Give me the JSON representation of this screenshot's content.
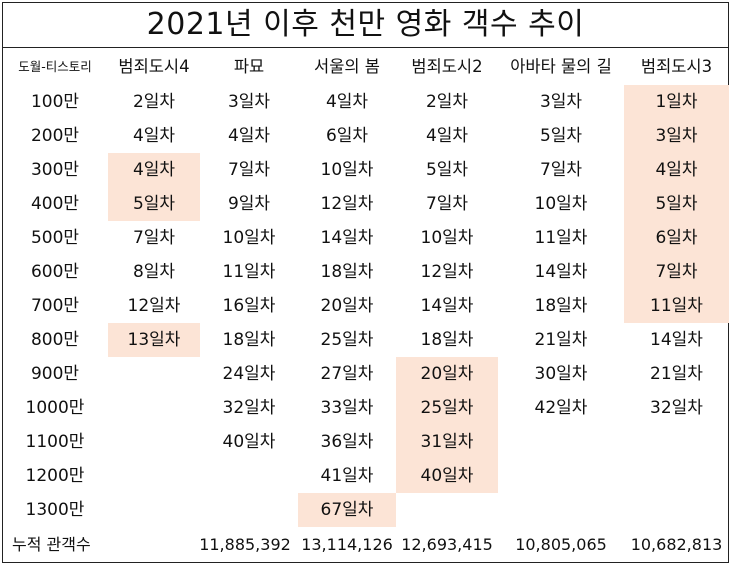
{
  "title": "2021년 이후 천만 영화 객수 추이",
  "header": {
    "corner": "도월-티스토리",
    "columns": [
      "범죄도시4",
      "파묘",
      "서울의 봄",
      "범죄도시2",
      "아바타 물의 길",
      "범죄도시3"
    ]
  },
  "highlight_color": "#fce4d6",
  "rows": [
    {
      "label": "100만",
      "cells": [
        {
          "v": "2일차"
        },
        {
          "v": "3일차"
        },
        {
          "v": "4일차"
        },
        {
          "v": "2일차"
        },
        {
          "v": "3일차"
        },
        {
          "v": "1일차",
          "hl": true
        }
      ]
    },
    {
      "label": "200만",
      "cells": [
        {
          "v": "4일차"
        },
        {
          "v": "4일차"
        },
        {
          "v": "6일차"
        },
        {
          "v": "4일차"
        },
        {
          "v": "5일차"
        },
        {
          "v": "3일차",
          "hl": true
        }
      ]
    },
    {
      "label": "300만",
      "cells": [
        {
          "v": "4일차",
          "hl": true
        },
        {
          "v": "7일차"
        },
        {
          "v": "10일차"
        },
        {
          "v": "5일차"
        },
        {
          "v": "7일차"
        },
        {
          "v": "4일차",
          "hl": true
        }
      ]
    },
    {
      "label": "400만",
      "cells": [
        {
          "v": "5일차",
          "hl": true
        },
        {
          "v": "9일차"
        },
        {
          "v": "12일차"
        },
        {
          "v": "7일차"
        },
        {
          "v": "10일차"
        },
        {
          "v": "5일차",
          "hl": true
        }
      ]
    },
    {
      "label": "500만",
      "cells": [
        {
          "v": "7일차"
        },
        {
          "v": "10일차"
        },
        {
          "v": "14일차"
        },
        {
          "v": "10일차"
        },
        {
          "v": "11일차"
        },
        {
          "v": "6일차",
          "hl": true
        }
      ]
    },
    {
      "label": "600만",
      "cells": [
        {
          "v": "8일차"
        },
        {
          "v": "11일차"
        },
        {
          "v": "18일차"
        },
        {
          "v": "12일차"
        },
        {
          "v": "14일차"
        },
        {
          "v": "7일차",
          "hl": true
        }
      ]
    },
    {
      "label": "700만",
      "cells": [
        {
          "v": "12일차"
        },
        {
          "v": "16일차"
        },
        {
          "v": "20일차"
        },
        {
          "v": "14일차"
        },
        {
          "v": "18일차"
        },
        {
          "v": "11일차",
          "hl": true
        }
      ]
    },
    {
      "label": "800만",
      "cells": [
        {
          "v": "13일차",
          "hl": true
        },
        {
          "v": "18일차"
        },
        {
          "v": "25일차"
        },
        {
          "v": "18일차"
        },
        {
          "v": "21일차"
        },
        {
          "v": "14일차"
        }
      ]
    },
    {
      "label": "900만",
      "cells": [
        {
          "v": ""
        },
        {
          "v": "24일차"
        },
        {
          "v": "27일차"
        },
        {
          "v": "20일차",
          "hl": true
        },
        {
          "v": "30일차"
        },
        {
          "v": "21일차"
        }
      ]
    },
    {
      "label": "1000만",
      "cells": [
        {
          "v": ""
        },
        {
          "v": "32일차"
        },
        {
          "v": "33일차"
        },
        {
          "v": "25일차",
          "hl": true
        },
        {
          "v": "42일차"
        },
        {
          "v": "32일차"
        }
      ]
    },
    {
      "label": "1100만",
      "cells": [
        {
          "v": ""
        },
        {
          "v": "40일차"
        },
        {
          "v": "36일차"
        },
        {
          "v": "31일차",
          "hl": true
        },
        {
          "v": ""
        },
        {
          "v": ""
        }
      ]
    },
    {
      "label": "1200만",
      "cells": [
        {
          "v": ""
        },
        {
          "v": ""
        },
        {
          "v": "41일차"
        },
        {
          "v": "40일차",
          "hl": true
        },
        {
          "v": ""
        },
        {
          "v": ""
        }
      ]
    },
    {
      "label": "1300만",
      "cells": [
        {
          "v": ""
        },
        {
          "v": ""
        },
        {
          "v": "67일차",
          "hl": true
        },
        {
          "v": ""
        },
        {
          "v": ""
        },
        {
          "v": ""
        }
      ]
    }
  ],
  "total": {
    "label": "누적 관객수",
    "values": [
      "",
      "11,885,392",
      "13,114,126",
      "12,693,415",
      "10,805,065",
      "10,682,813"
    ]
  }
}
